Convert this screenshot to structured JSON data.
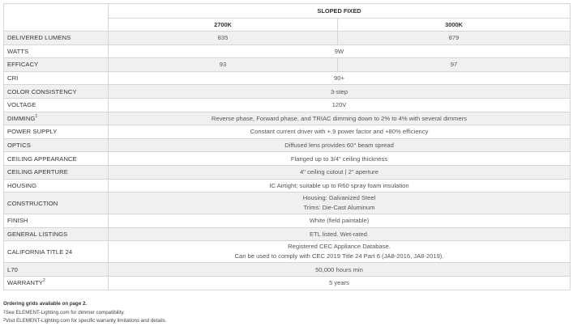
{
  "header": {
    "group": "SLOPED FIXED",
    "columns": [
      "2700K",
      "3000K"
    ]
  },
  "rows": [
    {
      "label": "DELIVERED LUMENS",
      "values": [
        "835",
        "879"
      ]
    },
    {
      "label": "WATTS",
      "value": "9W"
    },
    {
      "label": "EFFICACY",
      "values": [
        "93",
        "97"
      ]
    },
    {
      "label": "CRI",
      "value": "90+"
    },
    {
      "label": "COLOR CONSISTENCY",
      "value": "3-step"
    },
    {
      "label": "VOLTAGE",
      "value": "120V"
    },
    {
      "label": "DIMMING",
      "sup": "1",
      "value": "Reverse phase, Forward phase, and TRIAC dimming down to 2% to 4% with several dimmers"
    },
    {
      "label": "POWER SUPPLY",
      "value": "Constant current driver with +.9 power factor and +80% efficiency"
    },
    {
      "label": "OPTICS",
      "value": "Diffused lens provides 60° beam spread"
    },
    {
      "label": "CEILING APPEARANCE",
      "value": "Flanged up to 3/4\" ceiling thickness"
    },
    {
      "label": "CEILING APERTURE",
      "value": "4\" ceiling cutout | 2\" aperture"
    },
    {
      "label": "HOUSING",
      "value": "IC Airtight; suitable up to R60 spray foam insulation"
    },
    {
      "label": "CONSTRUCTION",
      "lines": [
        "Housing: Galvanized Steel",
        "Trims: Die-Cast Aluminum"
      ]
    },
    {
      "label": "FINISH",
      "value": "White (field paintable)"
    },
    {
      "label": "GENERAL LISTINGS",
      "value": "ETL listed. Wet-rated."
    },
    {
      "label": "CALIFORNIA TITLE 24",
      "lines": [
        "Registered CEC Appliance Database.",
        "Can be used to comply with CEC 2019 Title 24 Part 6 (JA8-2016, JA8-2019)."
      ]
    },
    {
      "label": "L70",
      "value": "50,000 hours min"
    },
    {
      "label": "WARRANTY",
      "sup": "2",
      "value": "5 years"
    }
  ],
  "notes": {
    "ordering": "Ordering grids available on page 2.",
    "footnotes": [
      {
        "mark": "1",
        "text": "See ELEMENT-Lighting.com for dimmer compatibility."
      },
      {
        "mark": "2",
        "text": "Visit ELEMENT-Lighting.com for specific warranty limitations and details."
      }
    ]
  }
}
